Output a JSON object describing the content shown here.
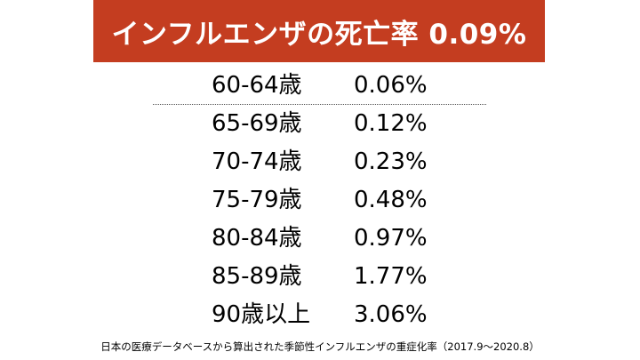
{
  "title": "インフルエンザの死亡率 0.09%",
  "chart_data": {
    "type": "table",
    "rows": [
      {
        "age": "60-64歳",
        "rate": "0.06%",
        "value": 0.06
      },
      {
        "age": "65-69歳",
        "rate": "0.12%",
        "value": 0.12
      },
      {
        "age": "70-74歳",
        "rate": "0.23%",
        "value": 0.23
      },
      {
        "age": "75-79歳",
        "rate": "0.48%",
        "value": 0.48
      },
      {
        "age": "80-84歳",
        "rate": "0.97%",
        "value": 0.97
      },
      {
        "age": "85-89歳",
        "rate": "1.77%",
        "value": 1.77
      },
      {
        "age": "90歳以上",
        "rate": "3.06%",
        "value": 3.06
      }
    ]
  },
  "footnote": "日本の医療データベースから算出された季節性インフルエンザの重症化率（2017.9〜2020.8）",
  "colors": {
    "banner": "#c43d20",
    "banner_text": "#ffffff",
    "text": "#000000"
  }
}
